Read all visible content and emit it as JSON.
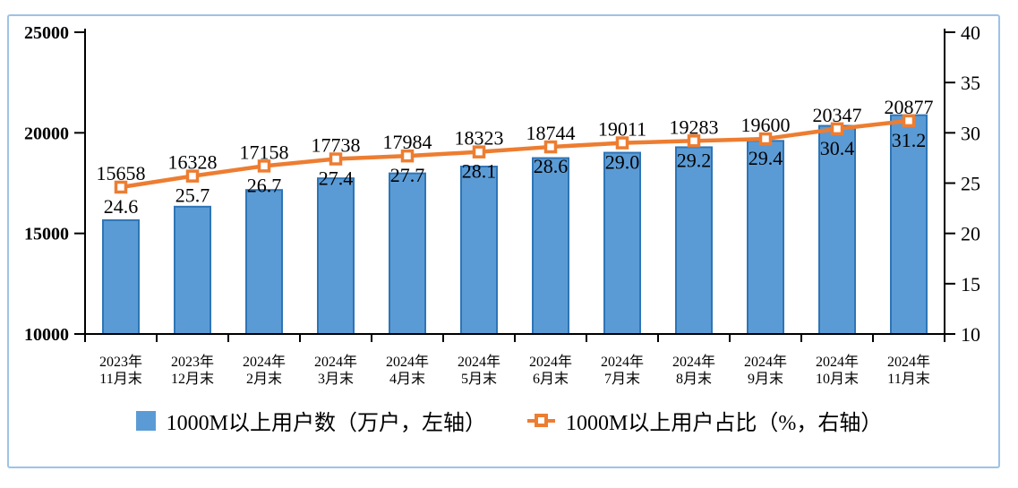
{
  "chart_data": {
    "type": "bar+line combo",
    "categories": [
      {
        "line1": "2023年",
        "line2": "11月末"
      },
      {
        "line1": "2023年",
        "line2": "12月末"
      },
      {
        "line1": "2024年",
        "line2": "2月末"
      },
      {
        "line1": "2024年",
        "line2": "3月末"
      },
      {
        "line1": "2024年",
        "line2": "4月末"
      },
      {
        "line1": "2024年",
        "line2": "5月末"
      },
      {
        "line1": "2024年",
        "line2": "6月末"
      },
      {
        "line1": "2024年",
        "line2": "7月末"
      },
      {
        "line1": "2024年",
        "line2": "8月末"
      },
      {
        "line1": "2024年",
        "line2": "9月末"
      },
      {
        "line1": "2024年",
        "line2": "10月末"
      },
      {
        "line1": "2024年",
        "line2": "11月末"
      }
    ],
    "series": [
      {
        "name": "1000M以上用户数（万户，左轴）",
        "type": "bar",
        "axis": "left",
        "values": [
          15658,
          16328,
          17158,
          17738,
          17984,
          18323,
          18744,
          19011,
          19283,
          19600,
          20347,
          20877
        ],
        "labels": [
          "15658",
          "16328",
          "17158",
          "17738",
          "17984",
          "18323",
          "18744",
          "19011",
          "19283",
          "19600",
          "20347",
          "20877"
        ]
      },
      {
        "name": "1000M以上用户占比（%，右轴）",
        "type": "line",
        "axis": "right",
        "values": [
          24.6,
          25.7,
          26.7,
          27.4,
          27.7,
          28.1,
          28.6,
          29.0,
          29.2,
          29.4,
          30.4,
          31.2
        ],
        "labels": [
          "24.6",
          "25.7",
          "26.7",
          "27.4",
          "27.7",
          "28.1",
          "28.6",
          "29.0",
          "29.2",
          "29.4",
          "30.4",
          "31.2"
        ]
      }
    ],
    "left_axis": {
      "min": 10000,
      "max": 25000,
      "ticks": [
        "10000",
        "15000",
        "20000",
        "25000"
      ]
    },
    "right_axis": {
      "min": 10,
      "max": 40,
      "ticks": [
        "10",
        "15",
        "20",
        "25",
        "30",
        "35",
        "40"
      ]
    },
    "legend_position": "bottom",
    "grid": "off",
    "colors": {
      "bar_fill": "#5B9BD5",
      "bar_border": "#2E75B6",
      "line": "#ED7D31",
      "marker_fill": "#FFFFFF",
      "axis": "#000000",
      "frame_border": "#9DC3E6",
      "text": "#000000"
    }
  }
}
